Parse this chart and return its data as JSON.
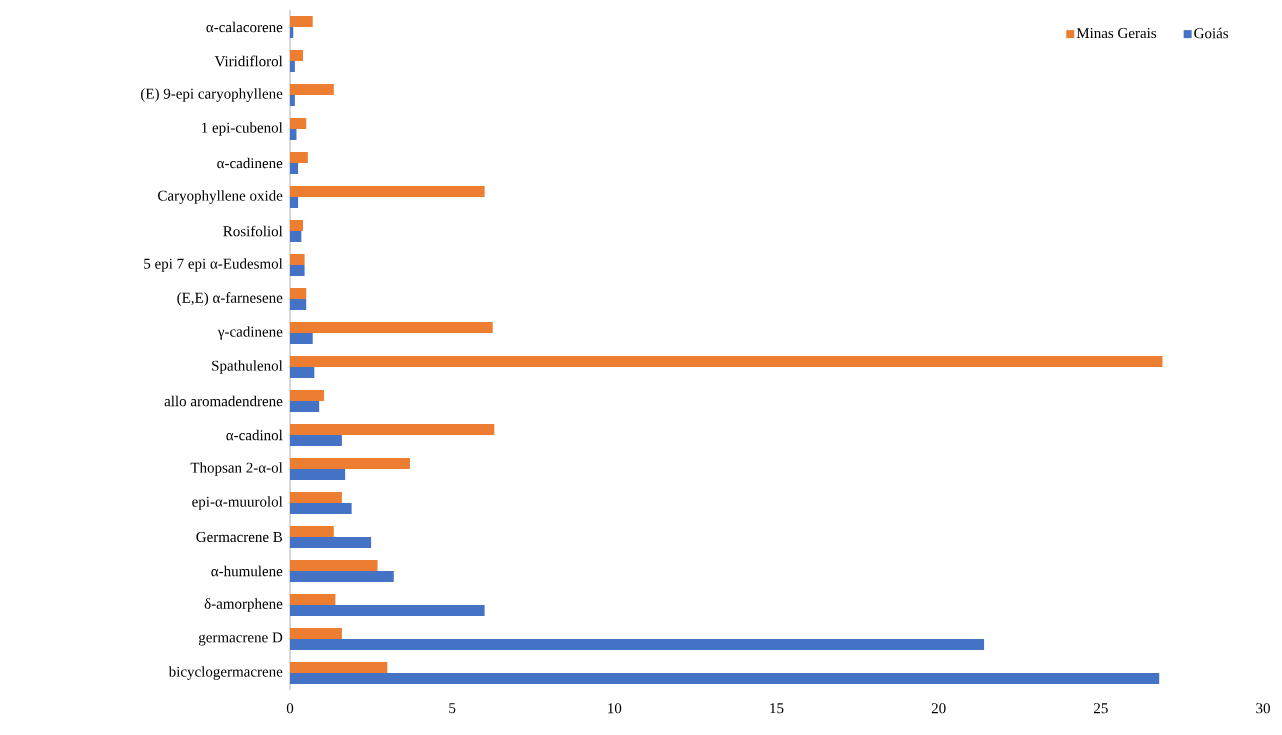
{
  "chart_data": {
    "type": "bar",
    "orientation": "horizontal",
    "categories": [
      "α-calacorene",
      "Viridiflorol",
      "(E) 9-epi caryophyllene",
      "1 epi-cubenol",
      "α-cadinene",
      "Caryophyllene oxide",
      "Rosifoliol",
      "5 epi 7 epi α-Eudesmol",
      "(E,E) α-farnesene",
      "γ-cadinene",
      "Spathulenol",
      "allo aromadendrene",
      "α-cadinol",
      "Thopsan 2-α-ol",
      "epi-α-muurolol",
      "Germacrene B",
      "α-humulene",
      "δ-amorphene",
      "germacrene D",
      "bicyclogermacrene"
    ],
    "series": [
      {
        "name": "Minas Gerais",
        "color": "#ed7d31",
        "values": [
          0.7,
          0.4,
          1.35,
          0.5,
          0.55,
          6.0,
          0.4,
          0.45,
          0.5,
          6.25,
          26.9,
          1.05,
          6.3,
          3.7,
          1.6,
          1.35,
          2.7,
          1.4,
          1.6,
          3.0
        ]
      },
      {
        "name": "Goiás",
        "color": "#4472c4",
        "values": [
          0.1,
          0.15,
          0.15,
          0.2,
          0.25,
          0.25,
          0.35,
          0.45,
          0.5,
          0.7,
          0.75,
          0.9,
          1.6,
          1.7,
          1.9,
          2.5,
          3.2,
          6.0,
          21.4,
          26.8
        ]
      }
    ],
    "xlim": [
      0,
      30
    ],
    "xticks": [
      0,
      5,
      10,
      15,
      20,
      25,
      30
    ],
    "legend": "top right",
    "grid": false
  }
}
